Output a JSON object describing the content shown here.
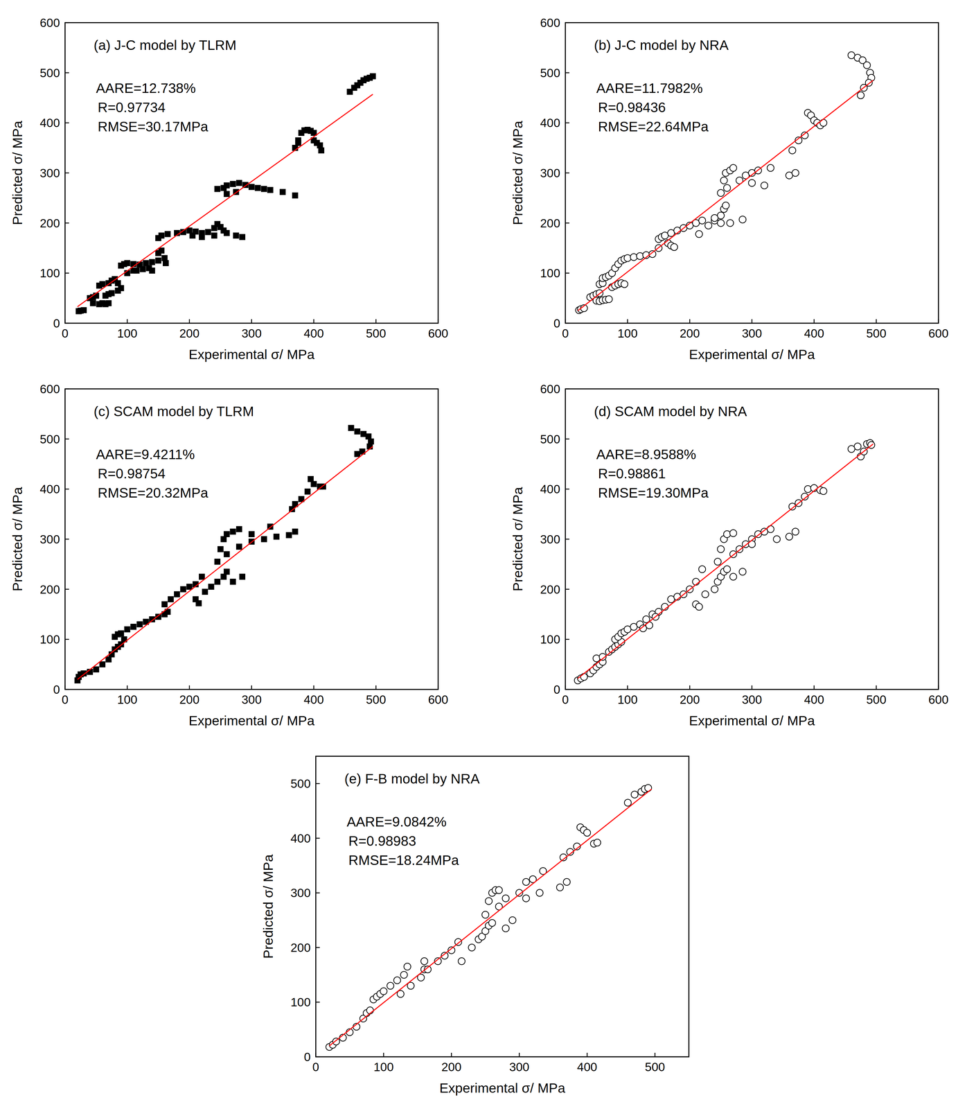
{
  "chart_data": [
    {
      "type": "scatter",
      "title": "(a) J-C model by TLRM",
      "annotations": [
        "AARE=12.738%",
        "R=0.97734",
        "RMSE=30.17MPa"
      ],
      "x_label": "Experimental σ/ MPa",
      "y_label": "Predicted σ/ MPa",
      "xlim": [
        0,
        600
      ],
      "ylim": [
        0,
        600
      ],
      "xticks": [
        0,
        100,
        200,
        300,
        400,
        500,
        600
      ],
      "yticks": [
        0,
        100,
        200,
        300,
        400,
        500,
        600
      ],
      "series": [
        {
          "type": "scatter",
          "marker": "square",
          "color": "#000000",
          "x": [
            22,
            25,
            30,
            40,
            45,
            50,
            45,
            55,
            60,
            65,
            70,
            55,
            60,
            70,
            75,
            80,
            85,
            90,
            85,
            75,
            70,
            65,
            90,
            95,
            100,
            110,
            120,
            130,
            140,
            150,
            135,
            125,
            115,
            140,
            100,
            110,
            150,
            155,
            160,
            162,
            150,
            155,
            165,
            180,
            190,
            200,
            210,
            220,
            230,
            240,
            245,
            250,
            255,
            240,
            260,
            275,
            285,
            205,
            220,
            245,
            255,
            260,
            270,
            280,
            290,
            300,
            310,
            320,
            330,
            350,
            370,
            260,
            275,
            370,
            375,
            380,
            385,
            390,
            395,
            400,
            400,
            405,
            410,
            412,
            375,
            458,
            465,
            470,
            475,
            480,
            485,
            490,
            495
          ],
          "values": [
            24,
            25,
            26,
            50,
            52,
            55,
            40,
            38,
            40,
            38,
            40,
            75,
            78,
            80,
            85,
            88,
            80,
            70,
            65,
            60,
            58,
            55,
            115,
            118,
            120,
            118,
            117,
            120,
            122,
            125,
            110,
            108,
            105,
            105,
            100,
            105,
            140,
            145,
            130,
            120,
            170,
            175,
            178,
            180,
            182,
            185,
            183,
            180,
            182,
            190,
            198,
            192,
            185,
            175,
            180,
            175,
            172,
            175,
            172,
            268,
            270,
            275,
            278,
            280,
            276,
            272,
            270,
            268,
            266,
            262,
            255,
            258,
            262,
            350,
            365,
            380,
            385,
            386,
            384,
            380,
            365,
            360,
            355,
            345,
            360,
            462,
            470,
            475,
            480,
            485,
            488,
            490,
            493
          ]
        },
        {
          "type": "line",
          "line_style": "solid",
          "color": "#ff0000",
          "x": [
            20,
            495
          ],
          "values": [
            33,
            457
          ]
        }
      ]
    },
    {
      "type": "scatter",
      "title": "(b) J-C model by NRA",
      "annotations": [
        "AARE=11.7982%",
        "R=0.98436",
        "RMSE=22.64MPa"
      ],
      "x_label": "Experimental σ/ MPa",
      "y_label": "Predicted σ/ MPa",
      "xlim": [
        0,
        600
      ],
      "ylim": [
        0,
        600
      ],
      "xticks": [
        0,
        100,
        200,
        300,
        400,
        500,
        600
      ],
      "yticks": [
        0,
        100,
        200,
        300,
        400,
        500,
        600
      ],
      "series": [
        {
          "type": "scatter",
          "marker": "circle_open",
          "color": "#000000",
          "x": [
            22,
            25,
            30,
            40,
            45,
            50,
            55,
            55,
            60,
            50,
            55,
            60,
            65,
            70,
            60,
            65,
            70,
            75,
            80,
            85,
            90,
            95,
            100,
            75,
            80,
            85,
            90,
            95,
            110,
            120,
            130,
            140,
            150,
            150,
            155,
            160,
            165,
            170,
            175,
            170,
            180,
            190,
            200,
            210,
            220,
            215,
            230,
            240,
            250,
            255,
            258,
            240,
            250,
            255,
            258,
            265,
            270,
            260,
            280,
            290,
            300,
            310,
            330,
            300,
            320,
            250,
            265,
            285,
            360,
            370,
            365,
            375,
            385,
            390,
            395,
            400,
            405,
            410,
            415,
            460,
            470,
            478,
            485,
            490,
            492,
            475,
            480,
            488
          ],
          "values": [
            26,
            28,
            30,
            52,
            55,
            58,
            60,
            78,
            80,
            45,
            44,
            46,
            47,
            48,
            90,
            92,
            95,
            100,
            110,
            118,
            125,
            128,
            130,
            72,
            75,
            78,
            80,
            78,
            132,
            134,
            136,
            138,
            150,
            168,
            172,
            175,
            160,
            155,
            152,
            180,
            185,
            190,
            195,
            200,
            205,
            178,
            195,
            205,
            215,
            228,
            235,
            210,
            260,
            285,
            300,
            305,
            310,
            270,
            285,
            295,
            300,
            305,
            310,
            280,
            275,
            200,
            200,
            207,
            295,
            300,
            345,
            365,
            375,
            420,
            415,
            405,
            400,
            395,
            400,
            535,
            530,
            525,
            515,
            500,
            490,
            455,
            470,
            480
          ]
        },
        {
          "type": "line",
          "line_style": "solid",
          "color": "#ff0000",
          "x": [
            20,
            495
          ],
          "values": [
            25,
            485
          ]
        }
      ]
    },
    {
      "type": "scatter",
      "title": "(c) SCAM model by TLRM",
      "annotations": [
        "AARE=9.4211%",
        "R=0.98754",
        "RMSE=20.32MPa"
      ],
      "x_label": "Experimental σ/ MPa",
      "y_label": "Predicted σ/ MPa",
      "xlim": [
        0,
        600
      ],
      "ylim": [
        0,
        600
      ],
      "xticks": [
        0,
        100,
        200,
        300,
        400,
        500,
        600
      ],
      "yticks": [
        0,
        100,
        200,
        300,
        400,
        500,
        600
      ],
      "series": [
        {
          "type": "scatter",
          "marker": "square",
          "color": "#000000",
          "x": [
            20,
            22,
            25,
            30,
            40,
            50,
            60,
            70,
            75,
            80,
            85,
            90,
            95,
            80,
            85,
            90,
            100,
            110,
            120,
            130,
            140,
            150,
            160,
            165,
            160,
            170,
            180,
            190,
            200,
            210,
            220,
            210,
            215,
            225,
            235,
            245,
            255,
            260,
            270,
            285,
            250,
            255,
            260,
            270,
            280,
            245,
            260,
            280,
            300,
            320,
            340,
            360,
            370,
            300,
            330,
            365,
            370,
            380,
            390,
            395,
            400,
            410,
            415,
            460,
            470,
            480,
            488,
            492,
            490,
            478,
            470
          ],
          "values": [
            18,
            25,
            30,
            32,
            35,
            40,
            50,
            60,
            70,
            80,
            85,
            90,
            100,
            105,
            110,
            112,
            120,
            125,
            130,
            135,
            140,
            145,
            150,
            155,
            170,
            180,
            190,
            200,
            205,
            210,
            225,
            180,
            172,
            195,
            205,
            215,
            225,
            235,
            215,
            225,
            280,
            300,
            310,
            315,
            320,
            255,
            270,
            285,
            295,
            300,
            305,
            308,
            315,
            310,
            325,
            360,
            370,
            380,
            395,
            420,
            410,
            405,
            405,
            522,
            515,
            510,
            505,
            495,
            485,
            475,
            470
          ]
        },
        {
          "type": "line",
          "line_style": "solid",
          "color": "#ff0000",
          "x": [
            20,
            495
          ],
          "values": [
            20,
            485
          ]
        }
      ]
    },
    {
      "type": "scatter",
      "title": "(d) SCAM model by NRA",
      "annotations": [
        "AARE=8.9588%",
        "R=0.98861",
        "RMSE=19.30MPa"
      ],
      "x_label": "Experimental σ/ MPa",
      "y_label": "Predicted σ/ MPa",
      "xlim": [
        0,
        600
      ],
      "ylim": [
        0,
        600
      ],
      "xticks": [
        0,
        100,
        200,
        300,
        400,
        500,
        600
      ],
      "yticks": [
        0,
        100,
        200,
        300,
        400,
        500,
        600
      ],
      "series": [
        {
          "type": "scatter",
          "marker": "circle_open",
          "color": "#000000",
          "x": [
            20,
            25,
            30,
            40,
            45,
            50,
            55,
            60,
            50,
            60,
            70,
            75,
            80,
            85,
            90,
            80,
            85,
            90,
            95,
            100,
            110,
            120,
            130,
            140,
            150,
            160,
            125,
            135,
            145,
            170,
            180,
            190,
            200,
            210,
            220,
            210,
            215,
            225,
            240,
            245,
            250,
            255,
            260,
            270,
            285,
            250,
            255,
            260,
            270,
            245,
            270,
            280,
            290,
            300,
            310,
            320,
            330,
            300,
            340,
            360,
            370,
            365,
            375,
            385,
            390,
            400,
            410,
            415,
            470,
            475,
            480,
            485,
            490,
            492,
            460
          ],
          "values": [
            18,
            22,
            25,
            32,
            38,
            45,
            50,
            55,
            62,
            65,
            75,
            80,
            85,
            90,
            95,
            100,
            105,
            112,
            115,
            120,
            125,
            130,
            140,
            150,
            155,
            165,
            122,
            128,
            145,
            180,
            185,
            190,
            200,
            215,
            240,
            170,
            165,
            190,
            200,
            215,
            225,
            235,
            240,
            225,
            235,
            280,
            300,
            310,
            312,
            255,
            270,
            280,
            290,
            300,
            310,
            315,
            320,
            290,
            300,
            305,
            315,
            365,
            372,
            385,
            400,
            402,
            398,
            396,
            485,
            465,
            475,
            490,
            492,
            488,
            480
          ]
        },
        {
          "type": "line",
          "line_style": "solid",
          "color": "#ff0000",
          "x": [
            20,
            495
          ],
          "values": [
            22,
            490
          ]
        }
      ]
    },
    {
      "type": "scatter",
      "title": "(e) F-B model by NRA",
      "annotations": [
        "AARE=9.0842%",
        "R=0.98983",
        "RMSE=18.24MPa"
      ],
      "x_label": "Experimental σ/ MPa",
      "y_label": "Predicted σ/ MPa",
      "xlim": [
        0,
        550
      ],
      "ylim": [
        0,
        550
      ],
      "xticks": [
        0,
        100,
        200,
        300,
        400,
        500
      ],
      "yticks": [
        0,
        100,
        200,
        300,
        400,
        500
      ],
      "series": [
        {
          "type": "scatter",
          "marker": "circle_open",
          "color": "#000000",
          "x": [
            20,
            25,
            30,
            40,
            50,
            60,
            70,
            75,
            80,
            85,
            90,
            95,
            100,
            110,
            120,
            130,
            135,
            125,
            140,
            155,
            160,
            160,
            165,
            180,
            190,
            200,
            210,
            215,
            230,
            240,
            245,
            250,
            255,
            260,
            250,
            255,
            260,
            265,
            270,
            280,
            290,
            270,
            280,
            300,
            310,
            320,
            335,
            310,
            330,
            360,
            370,
            365,
            375,
            385,
            390,
            395,
            400,
            410,
            415,
            460,
            470,
            480,
            485,
            490
          ],
          "values": [
            18,
            22,
            28,
            35,
            45,
            55,
            70,
            80,
            85,
            105,
            110,
            115,
            120,
            130,
            140,
            150,
            165,
            115,
            130,
            145,
            160,
            175,
            160,
            175,
            185,
            195,
            210,
            175,
            200,
            215,
            220,
            230,
            240,
            245,
            260,
            285,
            300,
            305,
            305,
            235,
            250,
            275,
            290,
            300,
            320,
            325,
            340,
            290,
            300,
            310,
            320,
            365,
            375,
            385,
            420,
            415,
            410,
            390,
            392,
            465,
            480,
            485,
            490,
            492
          ]
        },
        {
          "type": "line",
          "line_style": "solid",
          "color": "#ff0000",
          "x": [
            20,
            495
          ],
          "values": [
            20,
            490
          ]
        }
      ]
    }
  ]
}
